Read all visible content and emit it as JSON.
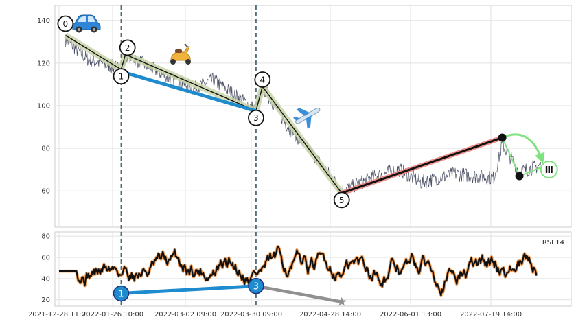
{
  "chart_data": [
    {
      "type": "line",
      "panel": "price",
      "ylim": [
        43,
        147
      ],
      "yticks": [
        60,
        80,
        100,
        120,
        140
      ],
      "grid": true,
      "series": [],
      "waves": [
        {
          "label": "0",
          "x": "2021-12-31",
          "y": 133
        },
        {
          "label": "1",
          "x": "2022-01-26",
          "y": 117
        },
        {
          "label": "2",
          "x": "2022-01-28",
          "y": 124
        },
        {
          "label": "3",
          "x": "2022-03-30",
          "y": 97.5
        },
        {
          "label": "4",
          "x": "2022-04-02",
          "y": 109
        },
        {
          "label": "5",
          "x": "2022-05-09",
          "y": 59
        }
      ],
      "blue_line": [
        {
          "x": "2022-01-26",
          "y": 116
        },
        {
          "x": "2022-03-30",
          "y": 97.5
        }
      ],
      "red_line": [
        {
          "x": "2022-05-09",
          "y": 59
        },
        {
          "x": "2022-07-23",
          "y": 85
        }
      ],
      "black_line": [
        {
          "x": "2022-05-09",
          "y": 59
        },
        {
          "x": "2022-07-23",
          "y": 85
        }
      ],
      "projection": [
        {
          "x": "2022-07-23",
          "y": 85
        },
        {
          "x": "2022-07-31",
          "y": 67
        },
        {
          "x": "2022-08-10",
          "y": 71
        }
      ],
      "end_label": "Ⅲ",
      "icons": {
        "car": "car-icon",
        "scooter": "scooter-icon",
        "plane": "airplane-icon"
      }
    },
    {
      "type": "line",
      "panel": "rsi",
      "ylim": [
        14,
        84
      ],
      "yticks": [
        20,
        40,
        60,
        80
      ],
      "grid": true,
      "legend_text": "RSI 14",
      "markers": [
        {
          "label": "1",
          "x": "2022-01-26",
          "y": 26
        },
        {
          "label": "3",
          "x": "2022-03-30",
          "y": 33
        }
      ],
      "blue_line": [
        {
          "x": "2022-01-26",
          "y": 26
        },
        {
          "x": "2022-03-30",
          "y": 33
        }
      ],
      "gray_line": [
        {
          "x": "2022-03-30",
          "y": 33
        },
        {
          "x": "2022-05-09",
          "y": 18
        }
      ],
      "star": {
        "x": "2022-05-09",
        "y": 18
      }
    }
  ],
  "x_tick_labels": [
    "2021-12-28 11:00",
    "2022-01-26 10:00",
    "2022-03-02 09:00",
    "2022-03-30 09:00",
    "2022-04-28 14:00",
    "2022-06-01 13:00",
    "2022-07-19 14:00"
  ],
  "colors": {
    "price_line": "#4a4f63",
    "wave_fill": "#c9d5a8",
    "blue": "#1f8bcf",
    "red": "#e8837f",
    "green": "#7ee27e",
    "gray": "#909090",
    "rsi_outer": "#f2a15a",
    "vline": "#4f6b78"
  }
}
